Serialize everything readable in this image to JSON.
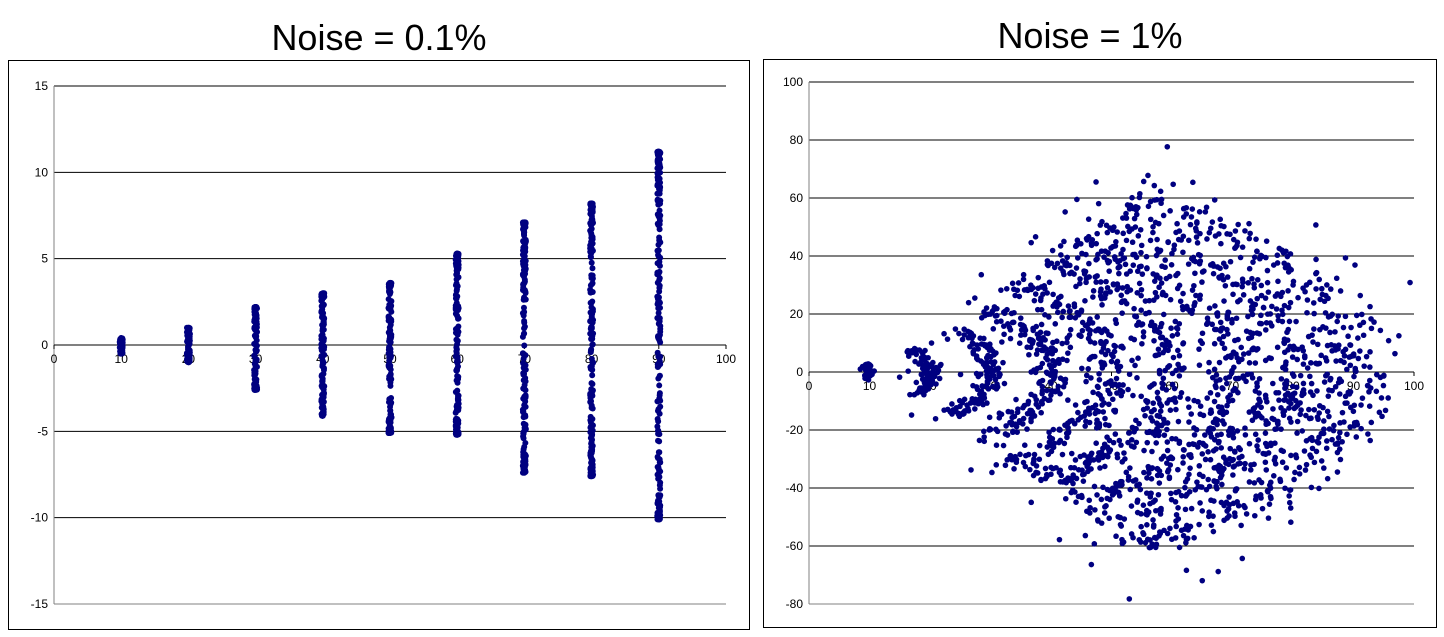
{
  "chart_data": [
    {
      "type": "scatter",
      "title": "Noise = 0.1%",
      "xlim": [
        0,
        100
      ],
      "ylim": [
        -15,
        15
      ],
      "x_ticks": [
        "0",
        "10",
        "20",
        "30",
        "40",
        "50",
        "60",
        "70",
        "80",
        "90",
        "100"
      ],
      "y_ticks": [
        "15",
        "10",
        "5",
        "0",
        "-5",
        "-10",
        "-15"
      ],
      "grid": "horizontal",
      "legend": "none",
      "marker_color": "#000080",
      "columns": [
        {
          "x": 10,
          "y_min": -0.5,
          "y_max": 0.4
        },
        {
          "x": 20,
          "y_min": -1.0,
          "y_max": 1.0
        },
        {
          "x": 30,
          "y_min": -2.6,
          "y_max": 2.2
        },
        {
          "x": 40,
          "y_min": -4.1,
          "y_max": 3.0
        },
        {
          "x": 50,
          "y_min": -5.1,
          "y_max": 3.6
        },
        {
          "x": 60,
          "y_min": -5.2,
          "y_max": 5.3
        },
        {
          "x": 70,
          "y_min": -7.4,
          "y_max": 7.1
        },
        {
          "x": 80,
          "y_min": -7.6,
          "y_max": 8.2
        },
        {
          "x": 90,
          "y_min": -10.1,
          "y_max": 11.2
        }
      ]
    },
    {
      "type": "scatter",
      "title": "Noise = 1%",
      "xlim": [
        0,
        100
      ],
      "ylim": [
        -80,
        100
      ],
      "x_ticks": [
        "0",
        "10",
        "20",
        "30",
        "40",
        "50",
        "60",
        "70",
        "80",
        "90",
        "100"
      ],
      "y_ticks": [
        "100",
        "80",
        "60",
        "40",
        "20",
        "0",
        "-20",
        "-40",
        "-60",
        "-80"
      ],
      "grid": "horizontal",
      "legend": "none",
      "marker_color": "#000080",
      "arcs": [
        {
          "radius": 10,
          "half_angle_deg": 20
        },
        {
          "radius": 20,
          "half_angle_deg": 30
        },
        {
          "radius": 30,
          "half_angle_deg": 37
        },
        {
          "radius": 40,
          "half_angle_deg": 43
        },
        {
          "radius": 50,
          "half_angle_deg": 48
        },
        {
          "radius": 60,
          "half_angle_deg": 50
        },
        {
          "radius": 70,
          "half_angle_deg": 52
        },
        {
          "radius": 80,
          "half_angle_deg": 53
        },
        {
          "radius": 90,
          "half_angle_deg": 54
        }
      ]
    }
  ]
}
